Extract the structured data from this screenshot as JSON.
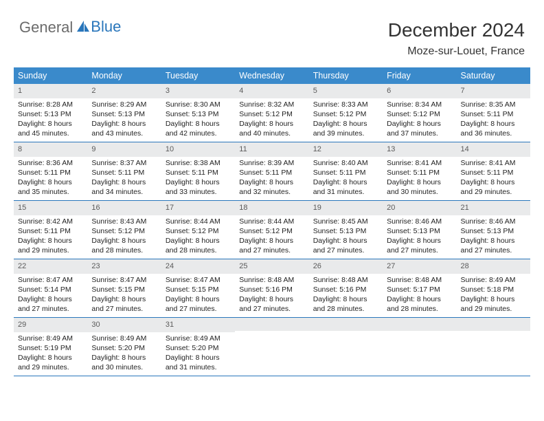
{
  "logo": {
    "text1": "General",
    "text2": "Blue"
  },
  "title": "December 2024",
  "location": "Moze-sur-Louet, France",
  "colors": {
    "header_bg": "#3a8acb",
    "row_border": "#2976bb",
    "daynum_bg": "#e9eaeb",
    "logo_gray": "#6b6b6b",
    "logo_blue": "#2976bb"
  },
  "weekdays": [
    "Sunday",
    "Monday",
    "Tuesday",
    "Wednesday",
    "Thursday",
    "Friday",
    "Saturday"
  ],
  "weeks": [
    [
      {
        "d": "1",
        "sr": "8:28 AM",
        "ss": "5:13 PM",
        "dl": "8 hours and 45 minutes."
      },
      {
        "d": "2",
        "sr": "8:29 AM",
        "ss": "5:13 PM",
        "dl": "8 hours and 43 minutes."
      },
      {
        "d": "3",
        "sr": "8:30 AM",
        "ss": "5:13 PM",
        "dl": "8 hours and 42 minutes."
      },
      {
        "d": "4",
        "sr": "8:32 AM",
        "ss": "5:12 PM",
        "dl": "8 hours and 40 minutes."
      },
      {
        "d": "5",
        "sr": "8:33 AM",
        "ss": "5:12 PM",
        "dl": "8 hours and 39 minutes."
      },
      {
        "d": "6",
        "sr": "8:34 AM",
        "ss": "5:12 PM",
        "dl": "8 hours and 37 minutes."
      },
      {
        "d": "7",
        "sr": "8:35 AM",
        "ss": "5:11 PM",
        "dl": "8 hours and 36 minutes."
      }
    ],
    [
      {
        "d": "8",
        "sr": "8:36 AM",
        "ss": "5:11 PM",
        "dl": "8 hours and 35 minutes."
      },
      {
        "d": "9",
        "sr": "8:37 AM",
        "ss": "5:11 PM",
        "dl": "8 hours and 34 minutes."
      },
      {
        "d": "10",
        "sr": "8:38 AM",
        "ss": "5:11 PM",
        "dl": "8 hours and 33 minutes."
      },
      {
        "d": "11",
        "sr": "8:39 AM",
        "ss": "5:11 PM",
        "dl": "8 hours and 32 minutes."
      },
      {
        "d": "12",
        "sr": "8:40 AM",
        "ss": "5:11 PM",
        "dl": "8 hours and 31 minutes."
      },
      {
        "d": "13",
        "sr": "8:41 AM",
        "ss": "5:11 PM",
        "dl": "8 hours and 30 minutes."
      },
      {
        "d": "14",
        "sr": "8:41 AM",
        "ss": "5:11 PM",
        "dl": "8 hours and 29 minutes."
      }
    ],
    [
      {
        "d": "15",
        "sr": "8:42 AM",
        "ss": "5:11 PM",
        "dl": "8 hours and 29 minutes."
      },
      {
        "d": "16",
        "sr": "8:43 AM",
        "ss": "5:12 PM",
        "dl": "8 hours and 28 minutes."
      },
      {
        "d": "17",
        "sr": "8:44 AM",
        "ss": "5:12 PM",
        "dl": "8 hours and 28 minutes."
      },
      {
        "d": "18",
        "sr": "8:44 AM",
        "ss": "5:12 PM",
        "dl": "8 hours and 27 minutes."
      },
      {
        "d": "19",
        "sr": "8:45 AM",
        "ss": "5:13 PM",
        "dl": "8 hours and 27 minutes."
      },
      {
        "d": "20",
        "sr": "8:46 AM",
        "ss": "5:13 PM",
        "dl": "8 hours and 27 minutes."
      },
      {
        "d": "21",
        "sr": "8:46 AM",
        "ss": "5:13 PM",
        "dl": "8 hours and 27 minutes."
      }
    ],
    [
      {
        "d": "22",
        "sr": "8:47 AM",
        "ss": "5:14 PM",
        "dl": "8 hours and 27 minutes."
      },
      {
        "d": "23",
        "sr": "8:47 AM",
        "ss": "5:15 PM",
        "dl": "8 hours and 27 minutes."
      },
      {
        "d": "24",
        "sr": "8:47 AM",
        "ss": "5:15 PM",
        "dl": "8 hours and 27 minutes."
      },
      {
        "d": "25",
        "sr": "8:48 AM",
        "ss": "5:16 PM",
        "dl": "8 hours and 27 minutes."
      },
      {
        "d": "26",
        "sr": "8:48 AM",
        "ss": "5:16 PM",
        "dl": "8 hours and 28 minutes."
      },
      {
        "d": "27",
        "sr": "8:48 AM",
        "ss": "5:17 PM",
        "dl": "8 hours and 28 minutes."
      },
      {
        "d": "28",
        "sr": "8:49 AM",
        "ss": "5:18 PM",
        "dl": "8 hours and 29 minutes."
      }
    ],
    [
      {
        "d": "29",
        "sr": "8:49 AM",
        "ss": "5:19 PM",
        "dl": "8 hours and 29 minutes."
      },
      {
        "d": "30",
        "sr": "8:49 AM",
        "ss": "5:20 PM",
        "dl": "8 hours and 30 minutes."
      },
      {
        "d": "31",
        "sr": "8:49 AM",
        "ss": "5:20 PM",
        "dl": "8 hours and 31 minutes."
      },
      null,
      null,
      null,
      null
    ]
  ],
  "labels": {
    "sunrise": "Sunrise: ",
    "sunset": "Sunset: ",
    "daylight": "Daylight: "
  }
}
